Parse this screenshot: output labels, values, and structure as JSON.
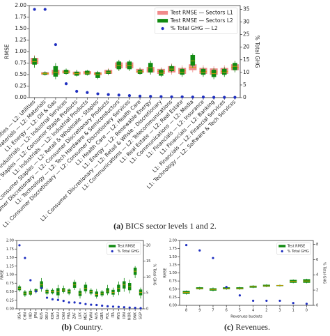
{
  "chart_data": [
    {
      "type": "box",
      "ylabel": "RMSE",
      "y2label": "% Total GHG",
      "legend": "upper right",
      "caption_label": "(a)",
      "caption": "BICS sector levels 1 and 2.",
      "categories": [
        "L1: Utilities — L2: Utilities",
        "L1: Materials — L2: Materials",
        "L1: Energy — L2: Oil & Gas",
        "L1: Industrials — L2: Industrial Services",
        "L1: Consumer Staples — L2: Consumer Staple Products",
        "L1: Industrials — L2: Industrial Products",
        "L1: Consumer Staples — L2: Retail & Wholesale - Staples",
        "L1: Consumer Discretionary — L2: Consumer Discretionary Products",
        "L1: Technology — L2: Tech Hardware & Semiconductors",
        "L1: Consumer Discretionary — L2: Consumer Discretionary Services",
        "L1: Health Care — L2: Health Care",
        "L1: Energy — L2: Renewable Energy",
        "L1: Consumer Discretionary — L2: Retail & Whsle - Discretionary",
        "L1: Communications — L2: Telecommunications",
        "L1: Real Estate — L2: Real Estate",
        "L1: Communications — L2: Media",
        "L1: Financials — L2: Insurance",
        "L1: Financials — L2: Banking",
        "L1: Financials — L2: Financial Services",
        "L1: Technology — L2: Software & Tech Services"
      ],
      "series": [
        {
          "name": "Test RMSE — Sectors L1",
          "color": "#f08a8a",
          "values": [
            [
              0.66,
              0.73,
              0.79,
              0.86,
              0.92
            ],
            [
              0.48,
              0.5,
              0.52,
              0.55,
              0.57
            ],
            [
              0.45,
              0.5,
              0.55,
              0.6,
              0.68
            ],
            [
              0.5,
              0.53,
              0.56,
              0.59,
              0.62
            ],
            [
              0.46,
              0.5,
              0.53,
              0.56,
              0.6
            ],
            [
              0.48,
              0.51,
              0.54,
              0.57,
              0.6
            ],
            [
              0.45,
              0.49,
              0.52,
              0.55,
              0.58
            ],
            [
              0.48,
              0.52,
              0.56,
              0.6,
              0.64
            ],
            [
              0.58,
              0.64,
              0.7,
              0.76,
              0.8
            ],
            [
              0.58,
              0.64,
              0.7,
              0.76,
              0.8
            ],
            [
              0.5,
              0.54,
              0.57,
              0.62,
              0.66
            ],
            [
              0.5,
              0.55,
              0.6,
              0.66,
              0.7
            ],
            [
              0.48,
              0.52,
              0.57,
              0.62,
              0.66
            ],
            [
              0.5,
              0.55,
              0.6,
              0.68,
              0.74
            ],
            [
              0.48,
              0.52,
              0.58,
              0.64,
              0.7
            ],
            [
              0.55,
              0.6,
              0.66,
              0.72,
              0.78
            ],
            [
              0.48,
              0.52,
              0.57,
              0.64,
              0.7
            ],
            [
              0.45,
              0.5,
              0.56,
              0.63,
              0.68
            ],
            [
              0.48,
              0.52,
              0.57,
              0.64,
              0.7
            ],
            [
              0.55,
              0.6,
              0.66,
              0.72,
              0.78
            ]
          ]
        },
        {
          "name": "Test RMSE — Sectors L2",
          "color": "#118a11",
          "values": [
            [
              0.65,
              0.72,
              0.78,
              0.85,
              0.9
            ],
            [
              0.48,
              0.5,
              0.52,
              0.54,
              0.57
            ],
            [
              0.4,
              0.46,
              0.55,
              0.68,
              0.75
            ],
            [
              0.5,
              0.52,
              0.55,
              0.6,
              0.63
            ],
            [
              0.46,
              0.48,
              0.52,
              0.56,
              0.6
            ],
            [
              0.48,
              0.5,
              0.53,
              0.58,
              0.6
            ],
            [
              0.4,
              0.43,
              0.5,
              0.55,
              0.58
            ],
            [
              0.5,
              0.52,
              0.55,
              0.58,
              0.62
            ],
            [
              0.58,
              0.62,
              0.7,
              0.78,
              0.82
            ],
            [
              0.58,
              0.62,
              0.7,
              0.78,
              0.82
            ],
            [
              0.5,
              0.52,
              0.56,
              0.6,
              0.64
            ],
            [
              0.5,
              0.55,
              0.65,
              0.75,
              0.8
            ],
            [
              0.45,
              0.48,
              0.53,
              0.6,
              0.63
            ],
            [
              0.55,
              0.58,
              0.62,
              0.68,
              0.72
            ],
            [
              0.45,
              0.5,
              0.55,
              0.62,
              0.66
            ],
            [
              0.65,
              0.7,
              0.8,
              0.92,
              0.96
            ],
            [
              0.45,
              0.5,
              0.55,
              0.62,
              0.66
            ],
            [
              0.4,
              0.45,
              0.52,
              0.6,
              0.64
            ],
            [
              0.45,
              0.5,
              0.55,
              0.62,
              0.66
            ],
            [
              0.55,
              0.6,
              0.68,
              0.75,
              0.8
            ]
          ]
        },
        {
          "name": "% Total GHG — L2",
          "color": "#1f2fc0",
          "axis": "y2",
          "values": [
            35,
            35,
            21,
            5.5,
            2.5,
            2,
            1.5,
            1.2,
            1,
            0.8,
            0.6,
            0.5,
            0.4,
            0.3,
            0.3,
            0.2,
            0.2,
            0.1,
            0.1,
            0.1
          ]
        }
      ],
      "ylim": [
        0,
        2.0
      ],
      "yticks": [
        {
          "value": 0,
          "label": "0.00"
        },
        {
          "value": 0.25,
          "label": "0.25"
        },
        {
          "value": 0.5,
          "label": "0.50"
        },
        {
          "value": 0.75,
          "label": "0.75"
        },
        {
          "value": 1.0,
          "label": "1.00"
        },
        {
          "value": 1.25,
          "label": "1.25"
        },
        {
          "value": 1.5,
          "label": "1.50"
        },
        {
          "value": 1.75,
          "label": "1.75"
        },
        {
          "value": 2.0,
          "label": "2.00"
        }
      ],
      "y2lim": [
        0,
        36.5
      ],
      "y2ticks": [
        0,
        5,
        10,
        15,
        20,
        25,
        30,
        35
      ]
    },
    {
      "type": "box",
      "ylabel": "RMSE",
      "y2label": "% Total GHG",
      "legend": "upper right",
      "caption_label": "(b)",
      "caption": "Country.",
      "categories": [
        "USA",
        "CHN",
        "IND",
        "JPN",
        "RUS",
        "DEU",
        "KOR",
        "SAU",
        "CAN",
        "FRA",
        "ZAF",
        "LUX",
        "MEX",
        "TWN",
        "AUS",
        "GBR",
        "POL",
        "ITA",
        "MYS",
        "IDN",
        "NOR",
        "DNK",
        "SGP"
      ],
      "series": [
        {
          "name": "Test RMSE",
          "color": "#118a11",
          "values": [
            [
              0.5,
              0.55,
              0.6,
              0.65,
              0.7
            ],
            [
              0.35,
              0.4,
              0.45,
              0.5,
              0.55
            ],
            [
              0.38,
              0.42,
              0.47,
              0.52,
              0.58
            ],
            [
              0.45,
              0.5,
              0.53,
              0.57,
              0.6
            ],
            [
              0.5,
              0.6,
              0.7,
              0.8,
              0.9
            ],
            [
              0.4,
              0.45,
              0.5,
              0.55,
              0.6
            ],
            [
              0.42,
              0.46,
              0.5,
              0.55,
              0.6
            ],
            [
              0.3,
              0.4,
              0.5,
              0.6,
              0.7
            ],
            [
              0.45,
              0.5,
              0.55,
              0.6,
              0.68
            ],
            [
              0.4,
              0.45,
              0.5,
              0.56,
              0.6
            ],
            [
              0.55,
              0.62,
              0.7,
              0.78,
              0.85
            ],
            [
              0.3,
              0.38,
              0.45,
              0.52,
              0.6
            ],
            [
              0.45,
              0.52,
              0.6,
              0.7,
              0.78
            ],
            [
              0.4,
              0.45,
              0.5,
              0.55,
              0.6
            ],
            [
              0.3,
              0.36,
              0.42,
              0.5,
              0.58
            ],
            [
              0.35,
              0.4,
              0.45,
              0.5,
              0.55
            ],
            [
              0.4,
              0.46,
              0.52,
              0.6,
              0.7
            ],
            [
              0.35,
              0.42,
              0.48,
              0.55,
              0.62
            ],
            [
              0.4,
              0.5,
              0.6,
              0.7,
              0.8
            ],
            [
              0.5,
              0.6,
              0.7,
              0.8,
              0.9
            ],
            [
              0.45,
              0.55,
              0.65,
              0.75,
              0.85
            ],
            [
              0.9,
              1.0,
              1.1,
              1.2,
              1.25
            ],
            [
              0.3,
              0.4,
              0.48,
              0.56,
              0.62
            ]
          ]
        },
        {
          "name": "% Total GHG",
          "color": "#1f2fc0",
          "axis": "y2",
          "values": [
            20,
            16,
            9,
            5.5,
            6.5,
            3.5,
            3,
            2.8,
            2.5,
            2,
            2,
            1.8,
            1.5,
            1.3,
            1.2,
            1,
            0.8,
            0.7,
            0.6,
            0.5,
            0.4,
            0.3,
            0.2
          ]
        }
      ],
      "ylim": [
        0,
        2.0
      ],
      "yticks": [
        {
          "value": 0,
          "label": "0.00"
        },
        {
          "value": 0.25,
          "label": "0.25"
        },
        {
          "value": 0.5,
          "label": "0.50"
        },
        {
          "value": 0.75,
          "label": "0.75"
        },
        {
          "value": 1.0,
          "label": "1.00"
        },
        {
          "value": 1.25,
          "label": "1.25"
        },
        {
          "value": 1.5,
          "label": "1.50"
        },
        {
          "value": 1.75,
          "label": "1.75"
        },
        {
          "value": 2.0,
          "label": "2.00"
        }
      ],
      "y2lim": [
        0,
        21.5
      ],
      "y2ticks": [
        0,
        5,
        10,
        15,
        20
      ]
    },
    {
      "type": "box",
      "ylabel": "RMSE",
      "y2label": "% Total GHG",
      "xlabel": "Revenues buckets",
      "legend": "upper right",
      "caption_label": "(c)",
      "caption": "Revenues.",
      "categories": [
        "8",
        "9",
        "7",
        "6",
        "5",
        "4",
        "2",
        "3",
        "1",
        "0"
      ],
      "series": [
        {
          "name": "Test RMSE",
          "color": "#118a11",
          "values": [
            [
              0.33,
              0.36,
              0.4,
              0.44,
              0.46
            ],
            [
              0.48,
              0.5,
              0.52,
              0.55,
              0.57
            ],
            [
              0.43,
              0.46,
              0.49,
              0.52,
              0.55
            ],
            [
              0.48,
              0.5,
              0.52,
              0.55,
              0.57
            ],
            [
              0.48,
              0.5,
              0.52,
              0.55,
              0.57
            ],
            [
              0.53,
              0.55,
              0.57,
              0.6,
              0.62
            ],
            [
              0.56,
              0.58,
              0.6,
              0.63,
              0.65
            ],
            [
              0.58,
              0.6,
              0.61,
              0.62,
              0.64
            ],
            [
              0.68,
              0.7,
              0.74,
              0.78,
              0.8
            ],
            [
              0.68,
              0.7,
              0.75,
              0.8,
              0.82
            ]
          ]
        },
        {
          "name": "% Total GHG",
          "color": "#1f2fc0",
          "axis": "y2",
          "values": [
            7.9,
            7.2,
            6.2,
            2.4,
            1.3,
            0.6,
            0.6,
            0.6,
            0.3,
            0.2
          ]
        }
      ],
      "ylim": [
        0,
        2.0
      ],
      "yticks": [
        {
          "value": 0,
          "label": "0.00"
        },
        {
          "value": 0.25,
          "label": "0.25"
        },
        {
          "value": 0.5,
          "label": "0.50"
        },
        {
          "value": 0.75,
          "label": "0.75"
        },
        {
          "value": 1.0,
          "label": "1.00"
        },
        {
          "value": 1.25,
          "label": "1.25"
        },
        {
          "value": 1.5,
          "label": "1.50"
        },
        {
          "value": 1.75,
          "label": "1.75"
        },
        {
          "value": 2.0,
          "label": "2.00"
        }
      ],
      "y2lim": [
        0,
        8.5
      ],
      "y2ticks": [
        0,
        2,
        4,
        6,
        8
      ]
    }
  ]
}
